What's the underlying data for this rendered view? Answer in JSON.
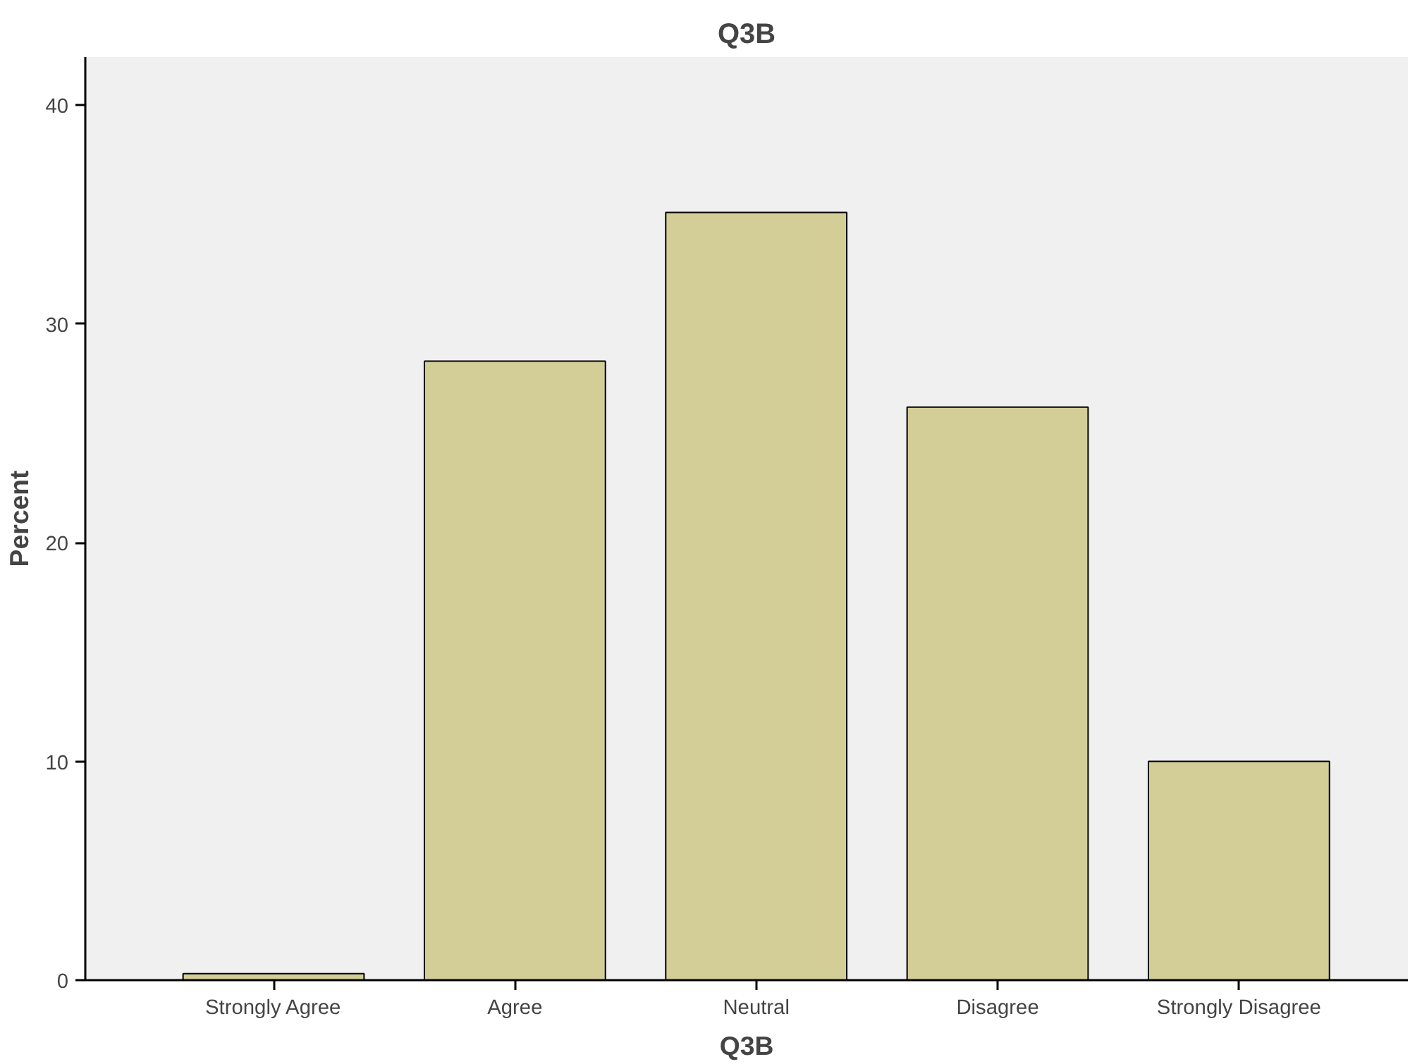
{
  "chart_data": {
    "type": "bar",
    "title": "Q3B",
    "xlabel": "Q3B",
    "ylabel": "Percent",
    "categories": [
      "Strongly Agree",
      "Agree",
      "Neutral",
      "Disagree",
      "Strongly Disagree"
    ],
    "values": [
      0.3,
      28.3,
      35.1,
      26.2,
      10.0
    ],
    "color": "#d3ce97",
    "ylim": [
      0,
      42.2
    ],
    "yticks": [
      0,
      10,
      20,
      30,
      40
    ],
    "grid": false
  }
}
